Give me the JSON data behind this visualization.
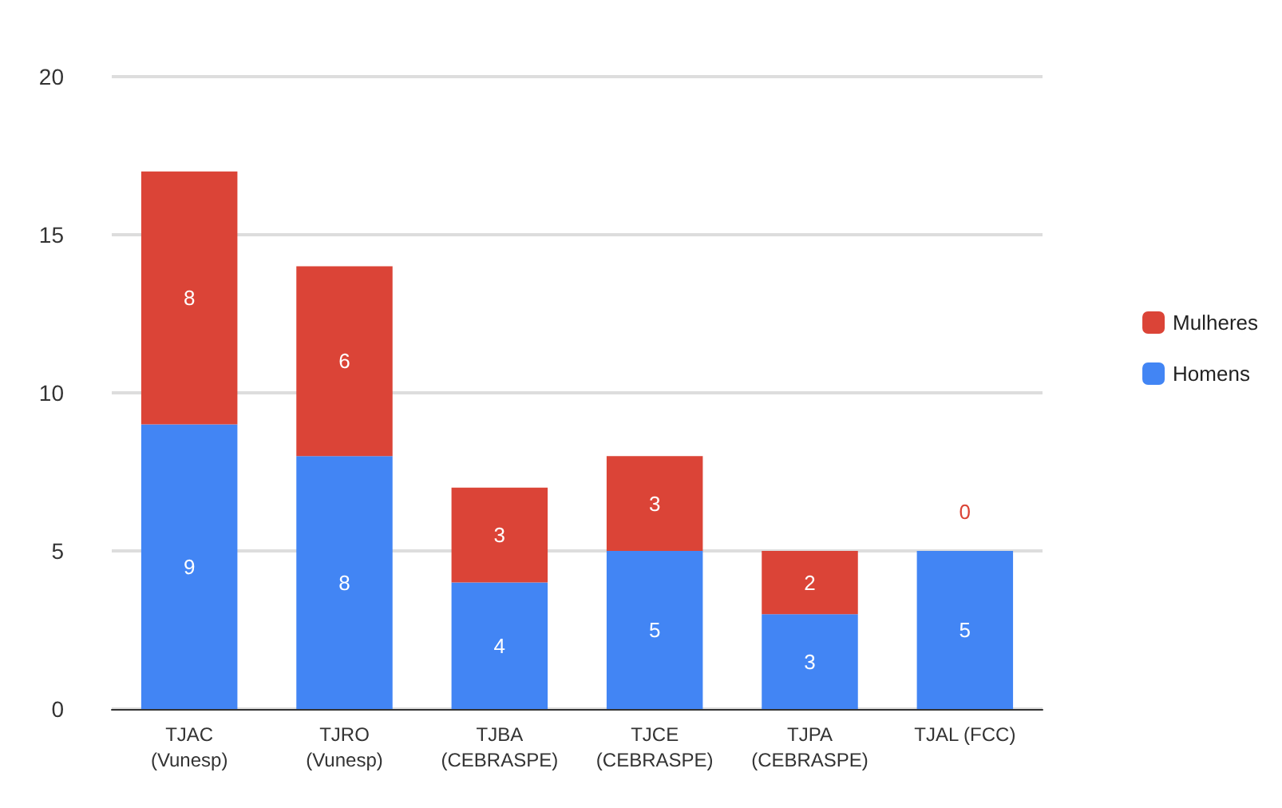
{
  "chart_data": {
    "type": "bar",
    "stacked": true,
    "categories": [
      "TJAC\n(Vunesp)",
      "TJRO\n(Vunesp)",
      "TJBA\n(CEBRASPE)",
      "TJCE\n(CEBRASPE)",
      "TJPA\n(CEBRASPE)",
      "TJAL (FCC)"
    ],
    "series": [
      {
        "name": "Homens",
        "color": "#4285f4",
        "values": [
          9,
          8,
          4,
          5,
          3,
          5
        ]
      },
      {
        "name": "Mulheres",
        "color": "#db4437",
        "values": [
          8,
          6,
          3,
          3,
          2,
          0
        ]
      }
    ],
    "ylim": [
      0,
      20
    ],
    "yticks": [
      0,
      5,
      10,
      15,
      20
    ],
    "grid": "y",
    "legend": "right",
    "data_labels": true
  }
}
